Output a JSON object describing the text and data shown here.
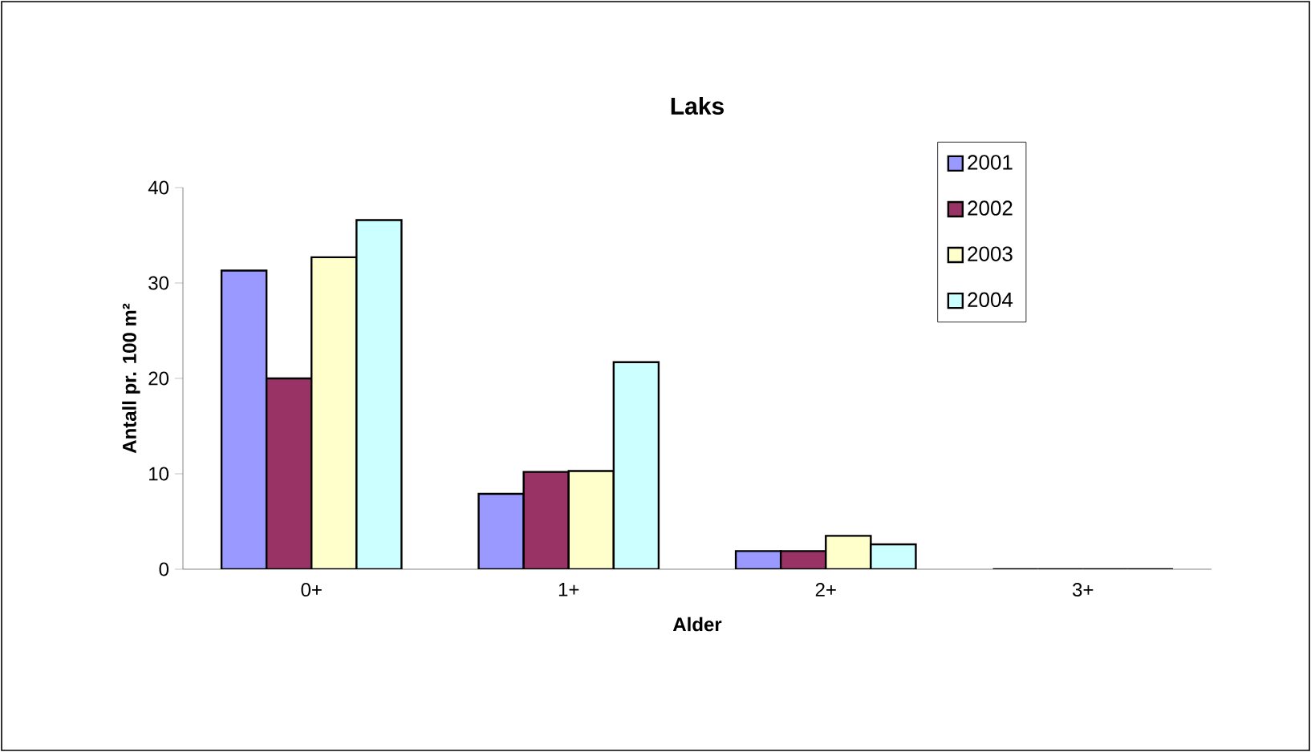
{
  "chart_data": {
    "type": "bar",
    "title": "Laks",
    "xlabel": "Alder",
    "ylabel": "Antall pr. 100 m²",
    "categories": [
      "0+",
      "1+",
      "2+",
      "3+"
    ],
    "series": [
      {
        "name": "2001",
        "color": "#9999ff",
        "values": [
          31.3,
          7.9,
          1.9,
          0
        ]
      },
      {
        "name": "2002",
        "color": "#993366",
        "values": [
          20.0,
          10.2,
          1.9,
          0
        ]
      },
      {
        "name": "2003",
        "color": "#ffffcc",
        "values": [
          32.7,
          10.3,
          3.5,
          0
        ]
      },
      {
        "name": "2004",
        "color": "#ccffff",
        "values": [
          36.6,
          21.7,
          2.6,
          0
        ]
      }
    ],
    "ylim": [
      0,
      40
    ],
    "yticks": [
      0,
      10,
      20,
      30,
      40
    ],
    "grid": false,
    "legend": "top right"
  }
}
